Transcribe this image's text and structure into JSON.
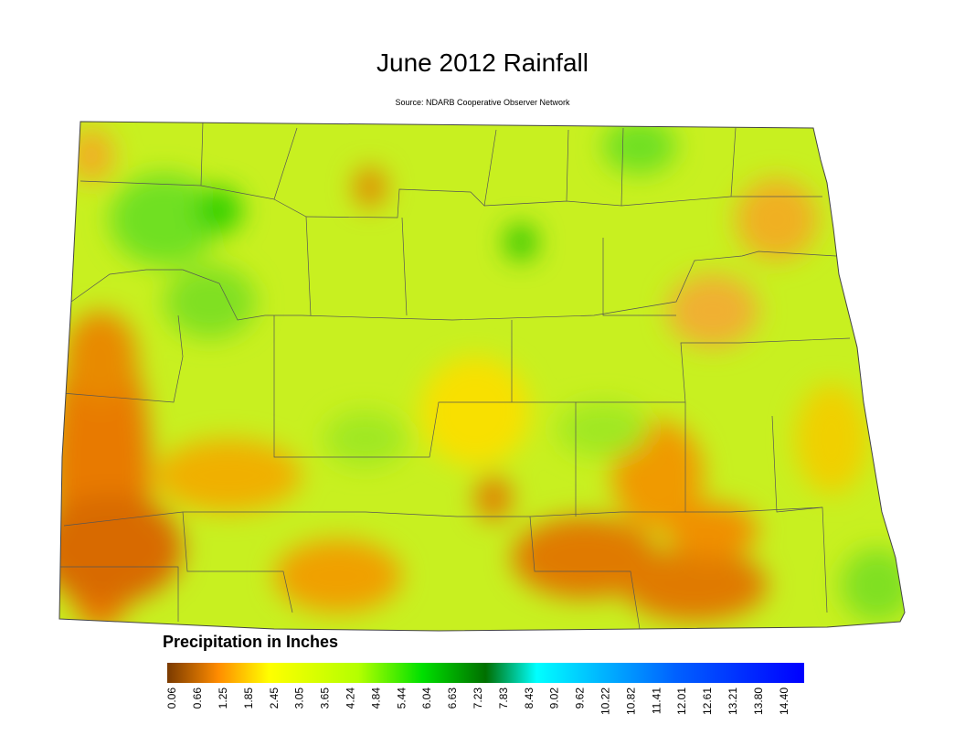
{
  "title": "June 2012 Rainfall",
  "source": "Source: NDARB Cooperative Observer Network",
  "legend": {
    "title": "Precipitation in Inches",
    "ticks": [
      "0.06",
      "0.66",
      "1.25",
      "1.85",
      "2.45",
      "3.05",
      "3.65",
      "4.24",
      "4.84",
      "5.44",
      "6.04",
      "6.63",
      "7.23",
      "7.83",
      "8.43",
      "9.02",
      "9.62",
      "10.22",
      "10.82",
      "11.41",
      "12.01",
      "12.61",
      "13.21",
      "13.80",
      "14.40"
    ]
  }
}
